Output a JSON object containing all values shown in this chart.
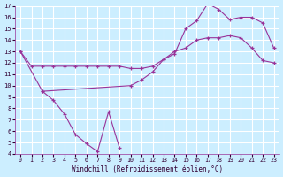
{
  "xlabel": "Windchill (Refroidissement éolien,°C)",
  "bg_color": "#cceeff",
  "grid_color": "#ffffff",
  "line_color": "#993399",
  "xlim": [
    -0.5,
    23.5
  ],
  "ylim": [
    4,
    17
  ],
  "xticks": [
    0,
    1,
    2,
    3,
    4,
    5,
    6,
    7,
    8,
    9,
    10,
    11,
    12,
    13,
    14,
    15,
    16,
    17,
    18,
    19,
    20,
    21,
    22,
    23
  ],
  "yticks": [
    4,
    5,
    6,
    7,
    8,
    9,
    10,
    11,
    12,
    13,
    14,
    15,
    16,
    17
  ],
  "series": [
    {
      "x": [
        0,
        1,
        2,
        3,
        4,
        5,
        6,
        7,
        8,
        9,
        10,
        11,
        12,
        13,
        14,
        15,
        16,
        17,
        18,
        19,
        20,
        21,
        22,
        23
      ],
      "y": [
        13,
        11.7,
        11.7,
        11.7,
        11.7,
        11.7,
        11.7,
        11.7,
        11.7,
        11.7,
        11.5,
        11.5,
        11.7,
        12.3,
        13.0,
        13.3,
        14.0,
        14.2,
        14.2,
        14.4,
        14.2,
        13.3,
        12.2,
        12.0
      ]
    },
    {
      "x": [
        0,
        2,
        3,
        4,
        5,
        6,
        7,
        8,
        9
      ],
      "y": [
        13,
        9.5,
        8.7,
        7.5,
        5.7,
        4.9,
        4.2,
        7.7,
        4.5
      ]
    },
    {
      "x": [
        2,
        10,
        11,
        12,
        13,
        14,
        15,
        16,
        17,
        18,
        19,
        20,
        21,
        22,
        23
      ],
      "y": [
        9.5,
        10.0,
        10.5,
        11.2,
        12.3,
        12.8,
        15.0,
        15.7,
        17.2,
        16.7,
        15.8,
        16.0,
        16.0,
        15.5,
        13.3
      ]
    }
  ]
}
